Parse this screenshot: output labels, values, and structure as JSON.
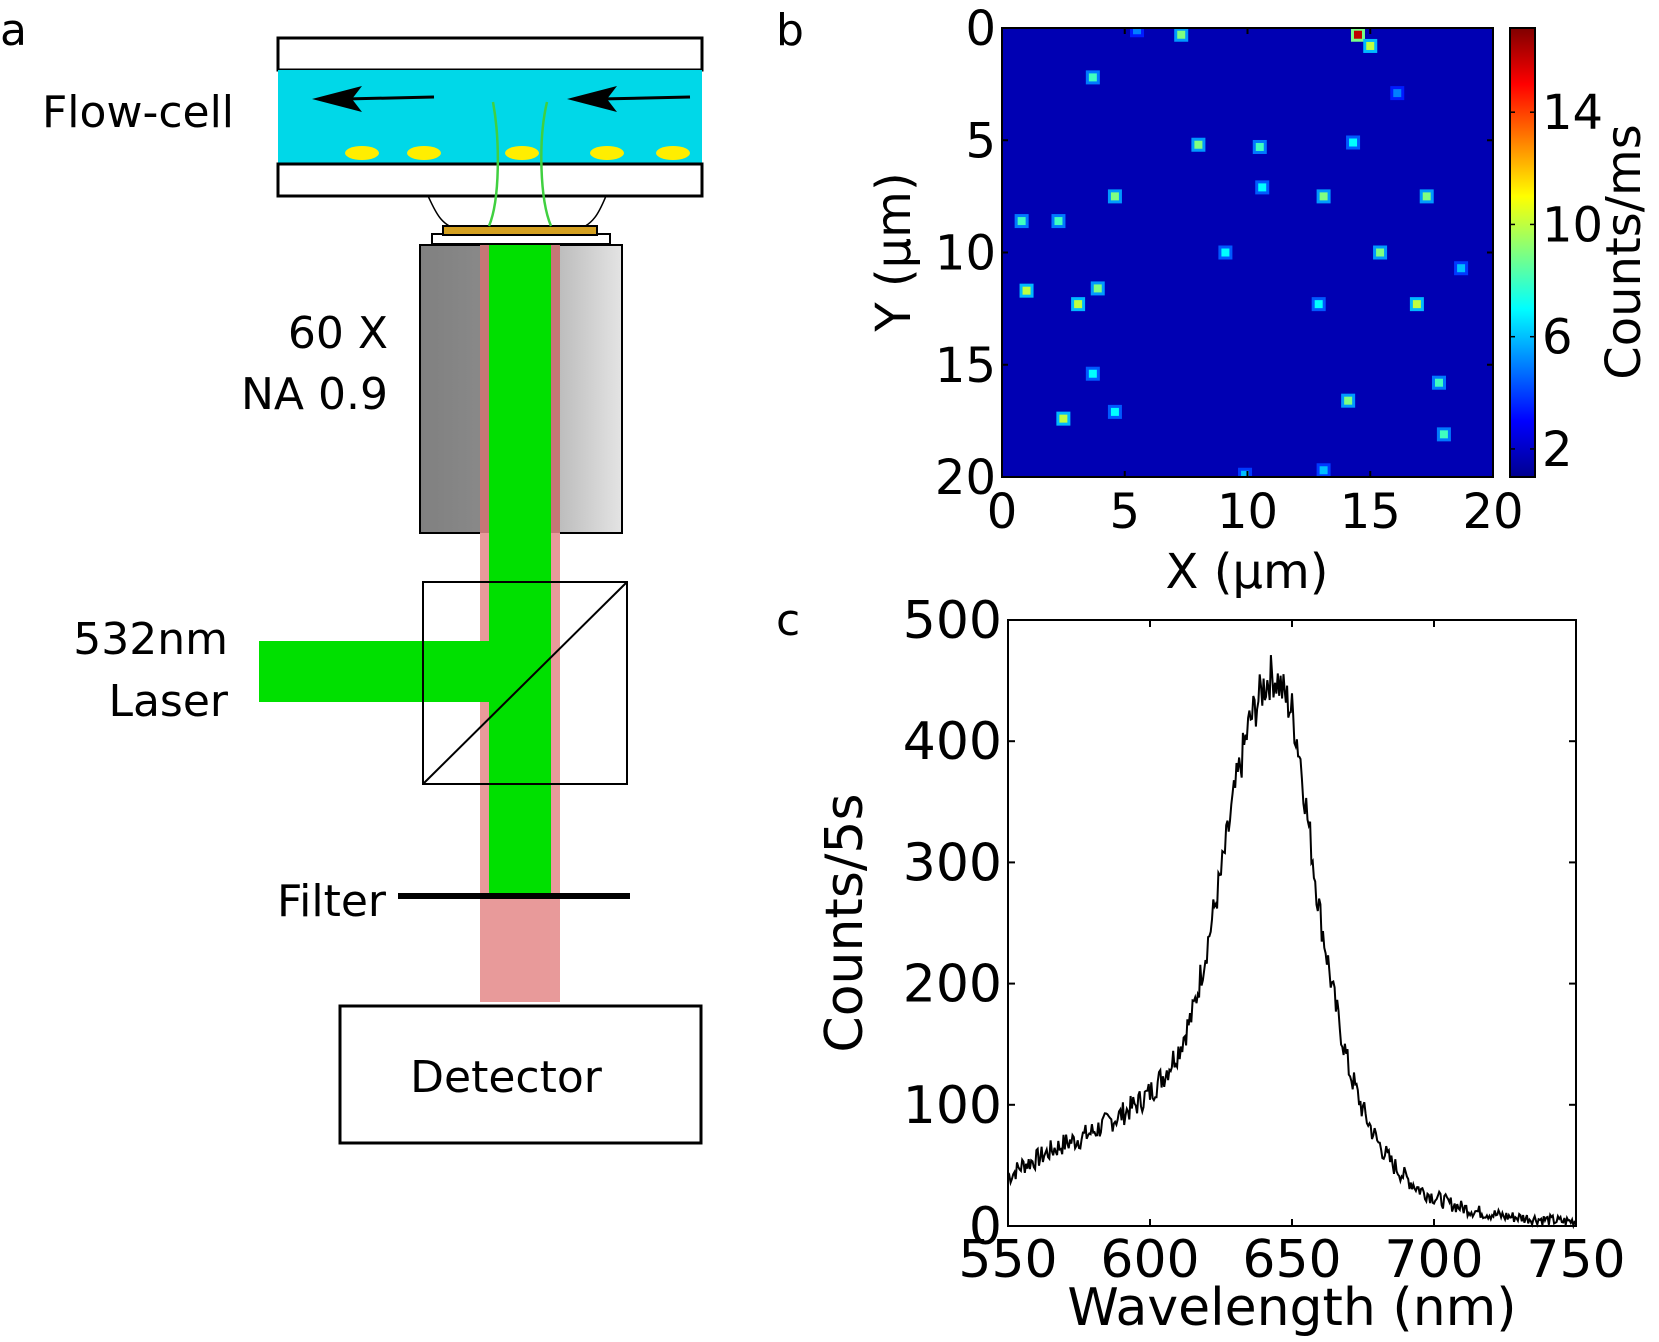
{
  "panel_labels": {
    "a": "a",
    "b": "b",
    "c": "c"
  },
  "schematic": {
    "flow_cell_label": "Flow-cell",
    "objective_label_line1": "60 X",
    "objective_label_line2": "NA 0.9",
    "laser_label_line1": "532nm",
    "laser_label_line2": "Laser",
    "filter_label": "Filter",
    "detector_label": "Detector",
    "colors": {
      "flow_liquid": "#00d8e8",
      "particle": "#ffee00",
      "laser": "#00e000",
      "emission": "#e89a9a",
      "objective_dark": "#808080",
      "objective_light": "#d8d8d8",
      "sample_plate": "#d4a020"
    },
    "icons": [
      "flow-direction-arrow-icon",
      "beam-splitter-icon"
    ]
  },
  "chart_data": [
    {
      "type": "heatmap",
      "xlabel": "X (µm)",
      "ylabel": "Y (µm)",
      "colorbar_label": "Counts/ms",
      "xlim": [
        0,
        20
      ],
      "ylim": [
        0,
        20
      ],
      "y_inverted": true,
      "x_ticks": [
        0,
        5,
        10,
        15,
        20
      ],
      "y_ticks": [
        0,
        5,
        10,
        15,
        20
      ],
      "colorbar_range": [
        1,
        17
      ],
      "colorbar_ticks": [
        2,
        6,
        10,
        14
      ],
      "colormap": "jet",
      "background_level": 1.8,
      "points": [
        {
          "x": 5.5,
          "y": 0.1,
          "v": 5
        },
        {
          "x": 7.3,
          "y": 0.3,
          "v": 9
        },
        {
          "x": 14.5,
          "y": 0.3,
          "v": 16
        },
        {
          "x": 15.0,
          "y": 0.8,
          "v": 10
        },
        {
          "x": 3.7,
          "y": 2.2,
          "v": 8
        },
        {
          "x": 16.1,
          "y": 2.9,
          "v": 5
        },
        {
          "x": 8.0,
          "y": 5.2,
          "v": 9
        },
        {
          "x": 10.5,
          "y": 5.3,
          "v": 8
        },
        {
          "x": 14.3,
          "y": 5.1,
          "v": 7
        },
        {
          "x": 4.6,
          "y": 7.5,
          "v": 9
        },
        {
          "x": 10.6,
          "y": 7.1,
          "v": 7
        },
        {
          "x": 13.1,
          "y": 7.5,
          "v": 9
        },
        {
          "x": 17.3,
          "y": 7.5,
          "v": 9
        },
        {
          "x": 0.8,
          "y": 8.6,
          "v": 8
        },
        {
          "x": 2.3,
          "y": 8.6,
          "v": 8
        },
        {
          "x": 9.1,
          "y": 10.0,
          "v": 7
        },
        {
          "x": 15.4,
          "y": 10.0,
          "v": 9
        },
        {
          "x": 18.7,
          "y": 10.7,
          "v": 6
        },
        {
          "x": 1.0,
          "y": 11.7,
          "v": 10
        },
        {
          "x": 3.9,
          "y": 11.6,
          "v": 9
        },
        {
          "x": 3.1,
          "y": 12.3,
          "v": 10
        },
        {
          "x": 12.9,
          "y": 12.3,
          "v": 7
        },
        {
          "x": 16.9,
          "y": 12.3,
          "v": 10
        },
        {
          "x": 3.7,
          "y": 15.4,
          "v": 7
        },
        {
          "x": 17.8,
          "y": 15.8,
          "v": 8
        },
        {
          "x": 14.1,
          "y": 16.6,
          "v": 9
        },
        {
          "x": 4.6,
          "y": 17.1,
          "v": 7
        },
        {
          "x": 2.5,
          "y": 17.4,
          "v": 10
        },
        {
          "x": 18.0,
          "y": 18.1,
          "v": 8
        },
        {
          "x": 13.1,
          "y": 19.7,
          "v": 6
        },
        {
          "x": 9.9,
          "y": 19.9,
          "v": 6
        }
      ]
    },
    {
      "type": "line",
      "xlabel": "Wavelength (nm)",
      "ylabel": "Counts/5s",
      "xlim": [
        550,
        750
      ],
      "ylim": [
        0,
        500
      ],
      "x_ticks": [
        550,
        600,
        650,
        700,
        750
      ],
      "y_ticks": [
        0,
        100,
        200,
        300,
        400,
        500
      ],
      "line_color": "#000000",
      "series": [
        {
          "x": [
            550,
            555,
            560,
            565,
            570,
            575,
            580,
            585,
            590,
            595,
            600,
            605,
            610,
            615,
            620,
            625,
            630,
            635,
            640,
            643,
            645,
            647,
            650,
            653,
            655,
            660,
            665,
            670,
            675,
            680,
            685,
            690,
            695,
            700,
            705,
            710,
            715,
            720,
            725,
            730,
            735,
            740,
            745,
            750
          ],
          "values": [
            40,
            50,
            55,
            62,
            68,
            72,
            78,
            85,
            92,
            100,
            110,
            125,
            145,
            175,
            230,
            290,
            360,
            415,
            445,
            455,
            450,
            440,
            425,
            385,
            345,
            255,
            185,
            130,
            95,
            70,
            52,
            40,
            30,
            24,
            19,
            15,
            12,
            10,
            8,
            7,
            6,
            5,
            4,
            4
          ]
        }
      ]
    }
  ]
}
